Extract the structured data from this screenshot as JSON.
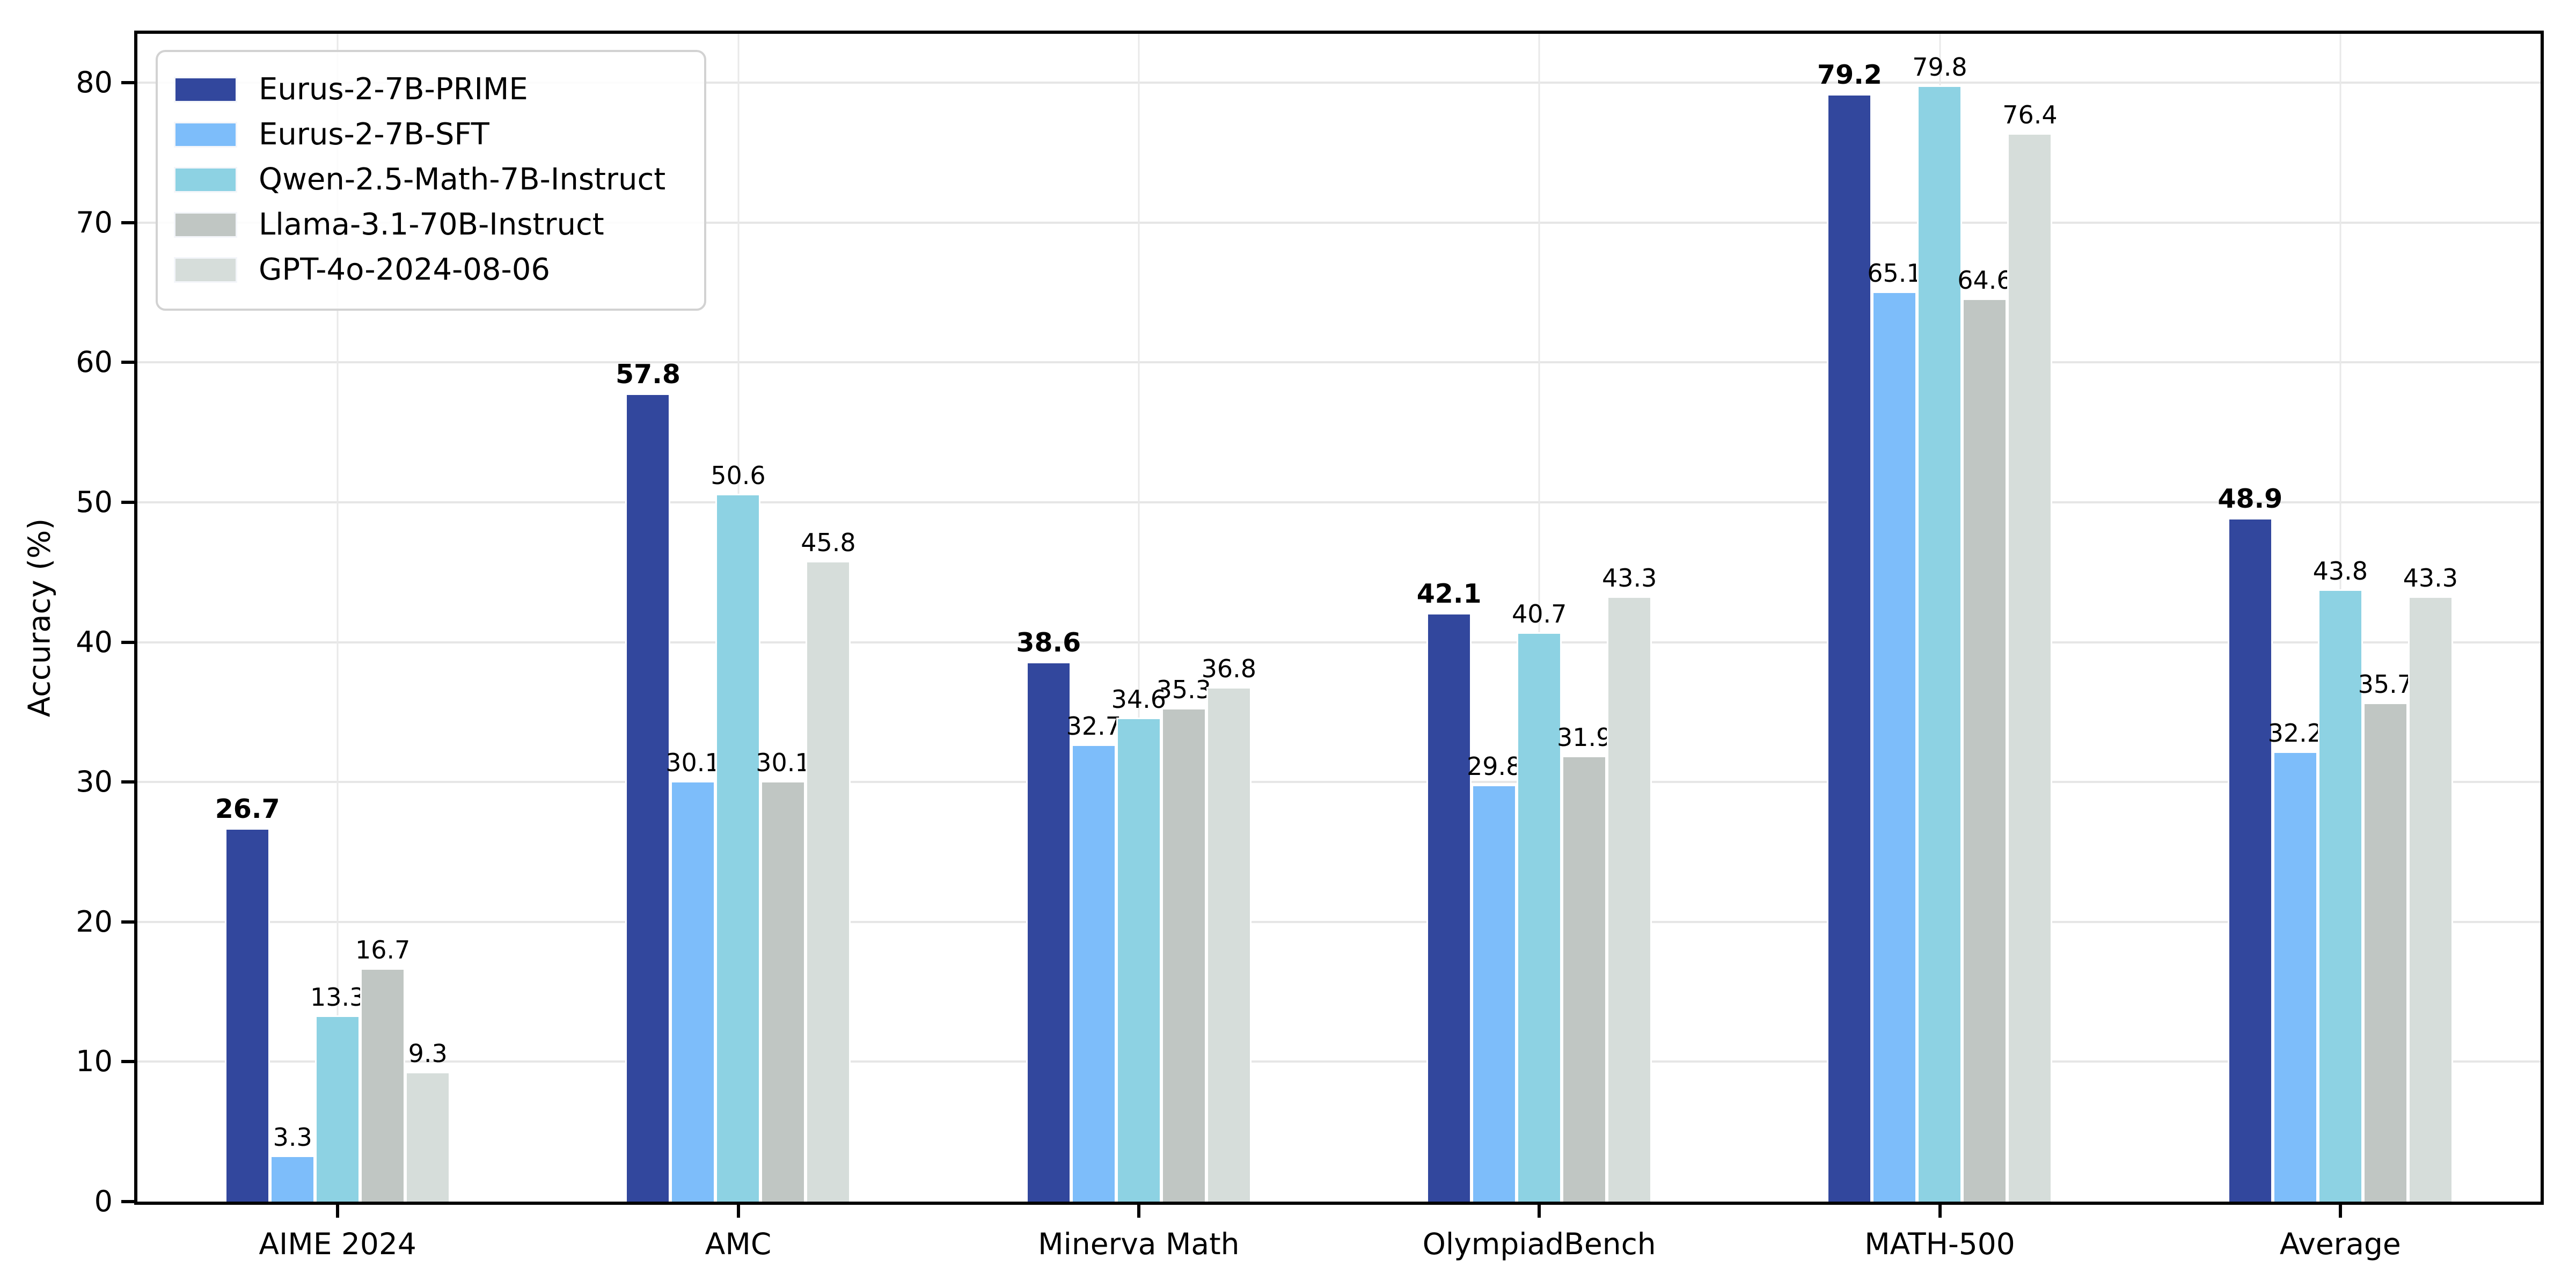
{
  "chart_data": {
    "type": "bar",
    "title": "",
    "xlabel": "",
    "ylabel": "Accuracy (%)",
    "categories": [
      "AIME 2024",
      "AMC",
      "Minerva Math",
      "OlympiadBench",
      "MATH-500",
      "Average"
    ],
    "series": [
      {
        "name": "Eurus-2-7B-PRIME",
        "color": "#32479d",
        "bold_labels": true,
        "values": [
          26.7,
          57.8,
          38.6,
          42.1,
          79.2,
          48.9
        ]
      },
      {
        "name": "Eurus-2-7B-SFT",
        "color": "#7dbdfa",
        "bold_labels": false,
        "values": [
          3.3,
          30.1,
          32.7,
          29.8,
          65.1,
          32.2
        ]
      },
      {
        "name": "Qwen-2.5-Math-7B-Instruct",
        "color": "#8dd2e3",
        "bold_labels": false,
        "values": [
          13.3,
          50.6,
          34.6,
          40.7,
          79.8,
          43.8
        ]
      },
      {
        "name": "Llama-3.1-70B-Instruct",
        "color": "#c0c6c3",
        "bold_labels": false,
        "values": [
          16.7,
          30.1,
          35.3,
          31.9,
          64.6,
          35.7
        ]
      },
      {
        "name": "GPT-4o-2024-08-06",
        "color": "#d6ddda",
        "bold_labels": false,
        "values": [
          9.3,
          45.8,
          36.8,
          43.3,
          76.4,
          43.3
        ]
      }
    ],
    "yticks": [
      0,
      10,
      20,
      30,
      40,
      50,
      60,
      70,
      80
    ],
    "ylim": [
      0,
      83.5
    ],
    "grid": true,
    "legend_position": "upper left",
    "colors": {
      "spine": "#000000",
      "gridline": "#e6e6e6",
      "legend_border": "#d2d2d2",
      "background": "#ffffff",
      "bar_edge": "#ffffff"
    }
  }
}
